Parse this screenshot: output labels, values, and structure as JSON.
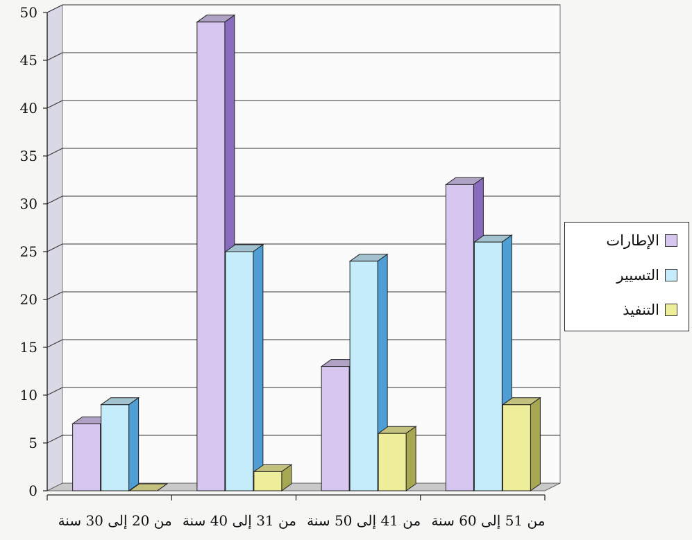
{
  "chart_data": {
    "type": "bar",
    "categories": [
      "من 20 إلى 30 سنة",
      "من 31 إلى 40 سنة",
      "من 41 إلى 50 سنة",
      "من 51 إلى 60 سنة"
    ],
    "series": [
      {
        "name": "الإطارات",
        "values": [
          7,
          49,
          13,
          32
        ],
        "color": "#d6c6f0",
        "side_color": "#8a6cbf"
      },
      {
        "name": "التسيير",
        "values": [
          9,
          25,
          24,
          26
        ],
        "color": "#c4ecfb",
        "side_color": "#4f9fd6"
      },
      {
        "name": "التنفيذ",
        "values": [
          0,
          2,
          6,
          9
        ],
        "color": "#eded9a",
        "side_color": "#a8a852"
      }
    ],
    "y_ticks": [
      "0",
      "5",
      "10",
      "15",
      "20",
      "25",
      "30",
      "35",
      "40",
      "45",
      "50"
    ],
    "ylim": [
      0,
      50
    ],
    "grid": true,
    "legend_position": "right",
    "title": "",
    "xlabel": "",
    "ylabel": ""
  }
}
